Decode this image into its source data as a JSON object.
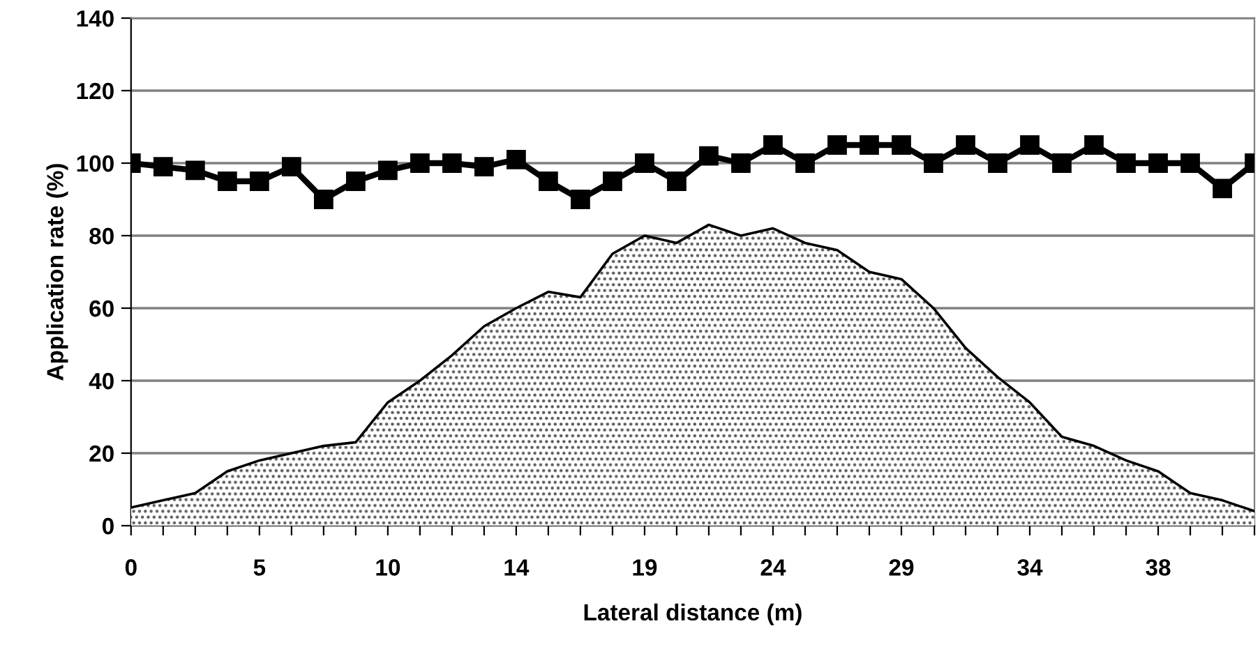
{
  "chart_data": {
    "type": "line",
    "xlabel": "Lateral distance (m)",
    "ylabel": "Application rate (%)",
    "categories": [
      "0",
      null,
      null,
      null,
      "5",
      null,
      null,
      null,
      "10",
      null,
      null,
      null,
      "14",
      null,
      null,
      null,
      "19",
      null,
      null,
      null,
      "24",
      null,
      null,
      null,
      "29",
      null,
      null,
      null,
      "34",
      null,
      null,
      null,
      "38",
      null,
      null,
      null
    ],
    "series": [
      {
        "type": "area",
        "color": "#555555",
        "values": [
          5,
          7,
          9,
          15,
          18,
          20,
          22,
          23,
          34,
          40,
          47,
          55,
          60,
          64.5,
          63,
          75,
          80,
          78,
          83,
          80,
          82,
          78,
          76,
          70,
          68,
          60,
          49,
          41,
          34,
          24.5,
          22,
          18,
          15,
          9,
          7,
          4
        ]
      },
      {
        "color": "#000000",
        "marker": "square",
        "values": [
          100,
          99,
          98,
          95,
          95,
          99,
          90,
          95,
          98,
          100,
          100,
          99,
          101,
          95,
          90,
          95,
          100,
          95,
          102,
          100,
          105,
          100,
          105,
          105,
          105,
          100,
          105,
          100,
          105,
          100,
          105,
          100,
          100,
          100,
          93,
          100
        ]
      }
    ],
    "ylim": [
      0,
      140
    ],
    "yticks": [
      0,
      20,
      40,
      60,
      80,
      100,
      120,
      140
    ],
    "grid": "y"
  }
}
